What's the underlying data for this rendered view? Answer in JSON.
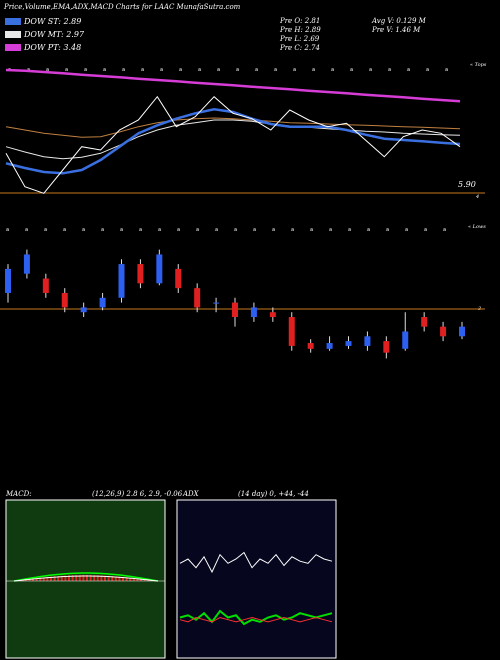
{
  "header": {
    "title": "Price,Volume,EMA,ADX,MACD Charts for LAAC MunafaSutra.com",
    "legend": [
      {
        "label": "DOW ST: 2.89",
        "color": "#3a6fe0"
      },
      {
        "label": "DOW MT: 2.97",
        "color": "#e8e8e8"
      },
      {
        "label": "DOW PT: 3.48",
        "color": "#d63cd6"
      }
    ],
    "stats_col1": [
      "Pre  O: 2.81",
      "Pre  H: 2.89",
      "Pre  L: 2.69",
      "Pre  C: 2.74"
    ],
    "stats_col2": [
      "Avg V: 0.129  M",
      "Pre  V: 1.46  M"
    ]
  },
  "chart_data": [
    {
      "type": "line",
      "name": "price-ema",
      "labels": {
        "top_right": "« Tops",
        "price_tag": "5.90",
        "lower_tag": "4"
      },
      "series": [
        {
          "color": "#d63cd6",
          "values": [
            6.45,
            6.44,
            6.42,
            6.4,
            6.38,
            6.36,
            6.34,
            6.32,
            6.3,
            6.28,
            6.26,
            6.24,
            6.22,
            6.2,
            6.18,
            6.16,
            6.14,
            6.12,
            6.1,
            6.08,
            6.06,
            6.04,
            6.02,
            6.0,
            5.98
          ]
        },
        {
          "color": "#c08040",
          "values": [
            5.6,
            5.55,
            5.5,
            5.47,
            5.44,
            5.45,
            5.52,
            5.6,
            5.66,
            5.7,
            5.72,
            5.73,
            5.72,
            5.7,
            5.68,
            5.66,
            5.65,
            5.64,
            5.63,
            5.62,
            5.61,
            5.6,
            5.59,
            5.58,
            5.57
          ]
        },
        {
          "color": "#e8e8e8",
          "values": [
            5.3,
            5.22,
            5.15,
            5.12,
            5.14,
            5.2,
            5.32,
            5.45,
            5.55,
            5.62,
            5.66,
            5.7,
            5.7,
            5.68,
            5.64,
            5.61,
            5.59,
            5.57,
            5.55,
            5.53,
            5.52,
            5.5,
            5.49,
            5.48,
            5.47
          ]
        },
        {
          "color": "#3a6fe0",
          "values": [
            5.05,
            4.98,
            4.92,
            4.9,
            4.95,
            5.1,
            5.3,
            5.5,
            5.62,
            5.72,
            5.8,
            5.86,
            5.82,
            5.72,
            5.64,
            5.6,
            5.6,
            5.6,
            5.55,
            5.48,
            5.42,
            5.4,
            5.38,
            5.36,
            5.34
          ]
        },
        {
          "color": "#ffffff",
          "values": [
            5.2,
            4.7,
            4.6,
            4.95,
            5.3,
            5.25,
            5.55,
            5.7,
            6.05,
            5.6,
            5.75,
            6.05,
            5.8,
            5.72,
            5.55,
            5.85,
            5.7,
            5.6,
            5.65,
            5.4,
            5.15,
            5.45,
            5.55,
            5.5,
            5.3
          ]
        }
      ]
    },
    {
      "type": "bar",
      "name": "candles",
      "labels": {
        "top_right": "« Lows",
        "level_tag": "3"
      },
      "candles": [
        {
          "o": 3.3,
          "c": 3.55,
          "h": 3.6,
          "l": 3.2
        },
        {
          "o": 3.5,
          "c": 3.7,
          "h": 3.75,
          "l": 3.45
        },
        {
          "o": 3.45,
          "c": 3.3,
          "h": 3.5,
          "l": 3.25
        },
        {
          "o": 3.3,
          "c": 3.15,
          "h": 3.35,
          "l": 3.1
        },
        {
          "o": 3.1,
          "c": 3.15,
          "h": 3.2,
          "l": 3.05
        },
        {
          "o": 3.15,
          "c": 3.25,
          "h": 3.3,
          "l": 3.12
        },
        {
          "o": 3.25,
          "c": 3.6,
          "h": 3.65,
          "l": 3.2
        },
        {
          "o": 3.6,
          "c": 3.4,
          "h": 3.65,
          "l": 3.35
        },
        {
          "o": 3.4,
          "c": 3.7,
          "h": 3.75,
          "l": 3.38
        },
        {
          "o": 3.55,
          "c": 3.35,
          "h": 3.6,
          "l": 3.3
        },
        {
          "o": 3.35,
          "c": 3.15,
          "h": 3.4,
          "l": 3.1
        },
        {
          "o": 3.2,
          "c": 3.2,
          "h": 3.25,
          "l": 3.1
        },
        {
          "o": 3.2,
          "c": 3.05,
          "h": 3.25,
          "l": 2.95
        },
        {
          "o": 3.05,
          "c": 3.15,
          "h": 3.2,
          "l": 3.0
        },
        {
          "o": 3.1,
          "c": 3.05,
          "h": 3.15,
          "l": 3.0
        },
        {
          "o": 3.05,
          "c": 2.75,
          "h": 3.1,
          "l": 2.7
        },
        {
          "o": 2.78,
          "c": 2.72,
          "h": 2.82,
          "l": 2.68
        },
        {
          "o": 2.72,
          "c": 2.78,
          "h": 2.85,
          "l": 2.7
        },
        {
          "o": 2.75,
          "c": 2.8,
          "h": 2.85,
          "l": 2.72
        },
        {
          "o": 2.75,
          "c": 2.85,
          "h": 2.9,
          "l": 2.7
        },
        {
          "o": 2.8,
          "c": 2.68,
          "h": 2.85,
          "l": 2.62
        },
        {
          "o": 2.72,
          "c": 2.9,
          "h": 3.1,
          "l": 2.7
        },
        {
          "o": 3.05,
          "c": 2.95,
          "h": 3.1,
          "l": 2.9
        },
        {
          "o": 2.95,
          "c": 2.85,
          "h": 3.0,
          "l": 2.8
        },
        {
          "o": 2.85,
          "c": 2.95,
          "h": 3.0,
          "l": 2.82
        }
      ]
    },
    {
      "type": "bar",
      "name": "macd",
      "labels": {
        "title": "MACD:",
        "params": "(12,26,9) 2.8        6, 2.9, -0.06"
      }
    },
    {
      "type": "line",
      "name": "adx",
      "labels": {
        "title": "ADX",
        "params": "(14  day) 0, +44, -44"
      },
      "series": [
        {
          "color": "#ffffff",
          "values": [
            40,
            42,
            38,
            43,
            36,
            44,
            40,
            42,
            45,
            38,
            42,
            40,
            44,
            39,
            43,
            41,
            40,
            44,
            42,
            41
          ]
        },
        {
          "color": "#00e000",
          "values": [
            15,
            16,
            14,
            17,
            13,
            18,
            15,
            16,
            12,
            14,
            13,
            15,
            16,
            14,
            15,
            17,
            16,
            15,
            16,
            17
          ]
        },
        {
          "color": "#ff3030",
          "values": [
            14,
            13,
            15,
            14,
            13,
            15,
            14,
            13,
            14,
            15,
            14,
            13,
            14,
            15,
            14,
            13,
            14,
            15,
            14,
            13
          ]
        }
      ]
    }
  ]
}
